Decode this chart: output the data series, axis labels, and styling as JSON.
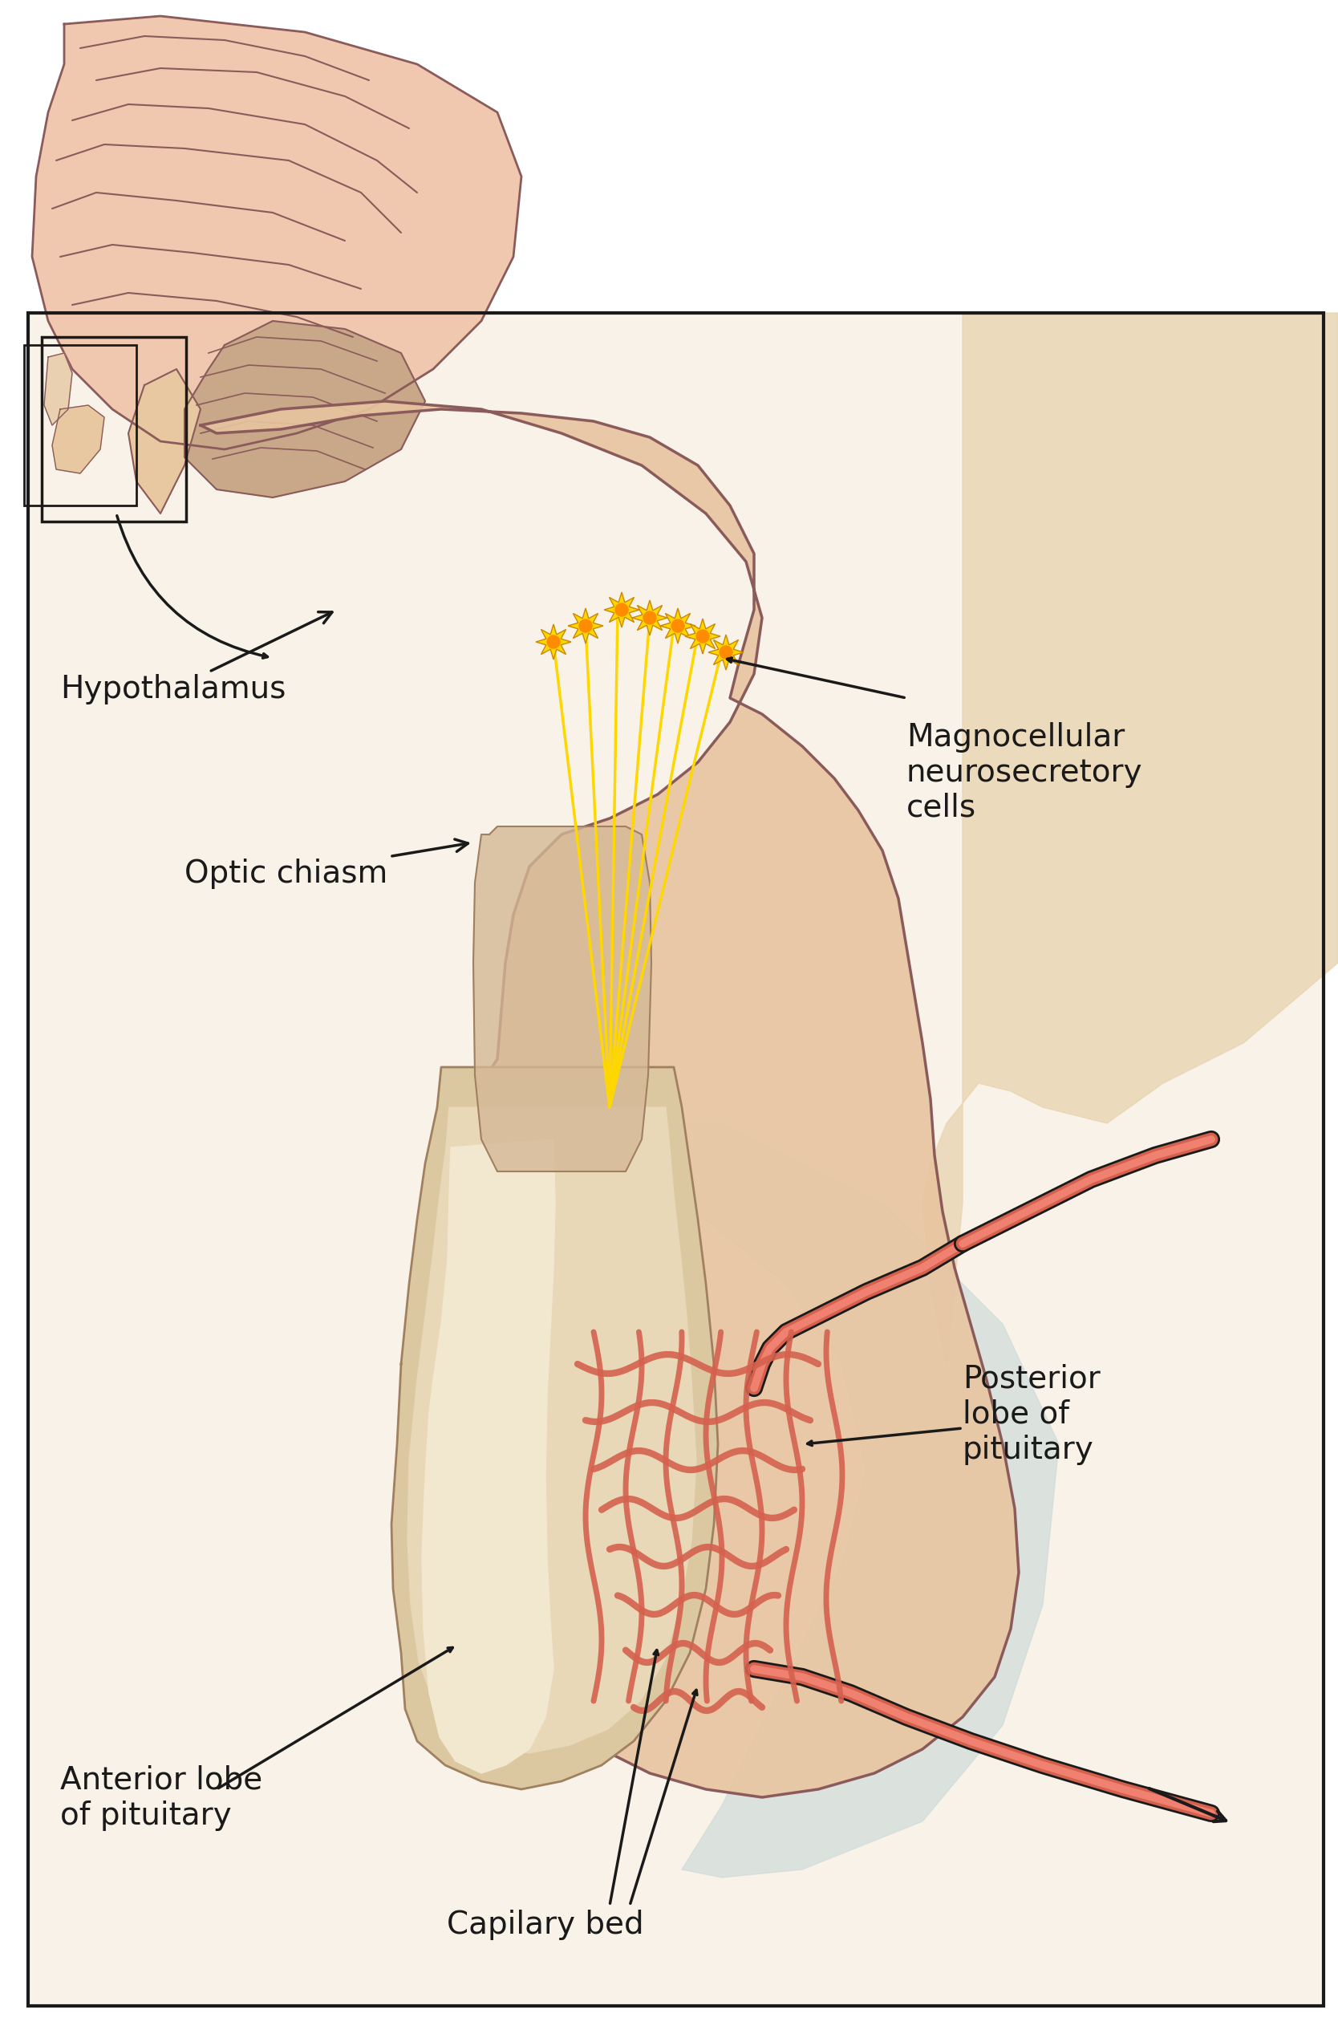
{
  "background_color": "#ffffff",
  "border_color": "#1a1a1a",
  "brain_color": "#f0c8b0",
  "brain_outline": "#8B5A5A",
  "hypothalamus_color": "#e8c4a0",
  "pituitary_outer_color": "#e8d0b0",
  "pituitary_inner_color": "#f5ead0",
  "anterior_lobe_color": "#f0e8d0",
  "posterior_lobe_fill": "#e8d5b5",
  "capillary_color": "#d4614e",
  "axon_color": "#FFD700",
  "neuron_color": "#FFD700",
  "neuron_star_color": "#FF8C00",
  "infundibulum_color": "#d4b896",
  "shadow_color": "#c8d8d8",
  "text_color": "#1a1a1a",
  "labels": {
    "hypothalamus": "Hypothalamus",
    "optic_chiasm": "Optic chiasm",
    "magnocellular": "Magnocellular\nneurosecretory\ncells",
    "posterior_lobe": "Posterior\nlobe of\npituitary",
    "anterior_lobe": "Anterior lobe\nof pituitary",
    "capillary_bed": "Capilary bed"
  },
  "fig_width": 16.68,
  "fig_height": 25.4
}
